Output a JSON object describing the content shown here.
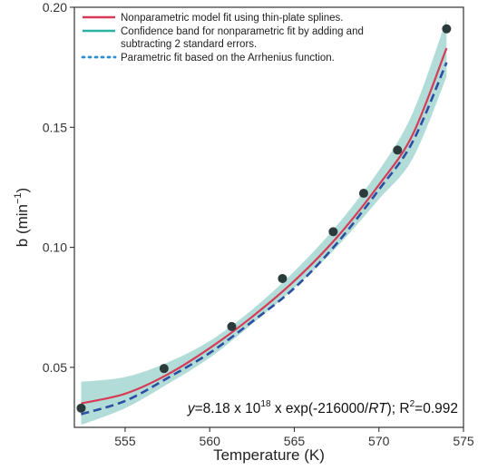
{
  "chart_data": {
    "type": "line",
    "xlabel": "Temperature (K)",
    "ylabel_main": "b (min",
    "ylabel_sup": "−1",
    "ylabel_close": ")",
    "xlim": [
      552,
      575
    ],
    "ylim": [
      0.025,
      0.2
    ],
    "xticks": [
      555,
      560,
      565,
      570,
      575
    ],
    "yticks": [
      0.05,
      0.1,
      0.15,
      0.2
    ],
    "xtick_labels": [
      "555",
      "560",
      "565",
      "570",
      "575"
    ],
    "ytick_labels": [
      "0.05",
      "0.10",
      "0.15",
      "0.20"
    ],
    "grid": false,
    "legend_position": "top-left",
    "legend": [
      {
        "label_lines": [
          "Nonparametric model fit using thin-plate splines."
        ],
        "color": "#d63c57",
        "style": "solid"
      },
      {
        "label_lines": [
          "Confidence band for nonparametric fit by adding and",
          "subtracting 2 standard errors."
        ],
        "color": "#2ab3a3",
        "style": "solid"
      },
      {
        "label_lines": [
          "Parametric fit based on the Arrhenius function."
        ],
        "color": "#2c8fd0",
        "style": "dotted"
      }
    ],
    "annotation": {
      "prefix": "y",
      "part1": "=8.18 x 10",
      "exponent": "18",
      "part2": " x exp(-216000/",
      "rt": "RT",
      "part3": "); R",
      "r_exponent": "2",
      "part4": "=0.992"
    },
    "series": [
      {
        "type": "scatter",
        "color": "#2b3a3a",
        "x": [
          552.4,
          557.3,
          561.3,
          564.3,
          567.3,
          569.1,
          571.1,
          574.0
        ],
        "y": [
          0.033,
          0.0495,
          0.067,
          0.087,
          0.1065,
          0.1225,
          0.1405,
          0.191
        ]
      },
      {
        "type": "line",
        "color": "#d63c57",
        "x": [
          552.4,
          555,
          557.5,
          560,
          562.5,
          565,
          567.5,
          570,
          572,
          574
        ],
        "y": [
          0.035,
          0.039,
          0.047,
          0.058,
          0.071,
          0.086,
          0.104,
          0.126,
          0.147,
          0.183
        ]
      },
      {
        "type": "band",
        "color": "#a9d8d3",
        "x": [
          552.4,
          555,
          557.5,
          560,
          562.5,
          565,
          567.5,
          570,
          572,
          574
        ],
        "lower": [
          0.026,
          0.033,
          0.043,
          0.054,
          0.068,
          0.083,
          0.1,
          0.12,
          0.137,
          0.171
        ],
        "upper": [
          0.044,
          0.046,
          0.052,
          0.061,
          0.074,
          0.09,
          0.109,
          0.132,
          0.156,
          0.195
        ]
      },
      {
        "type": "line",
        "color": "#2d4fa3",
        "style": "dashed",
        "x": [
          552.4,
          555,
          557.5,
          560,
          562.5,
          565,
          567.5,
          570,
          572,
          574
        ],
        "y": [
          0.0305,
          0.036,
          0.0455,
          0.056,
          0.069,
          0.083,
          0.1015,
          0.124,
          0.144,
          0.177
        ]
      }
    ]
  }
}
